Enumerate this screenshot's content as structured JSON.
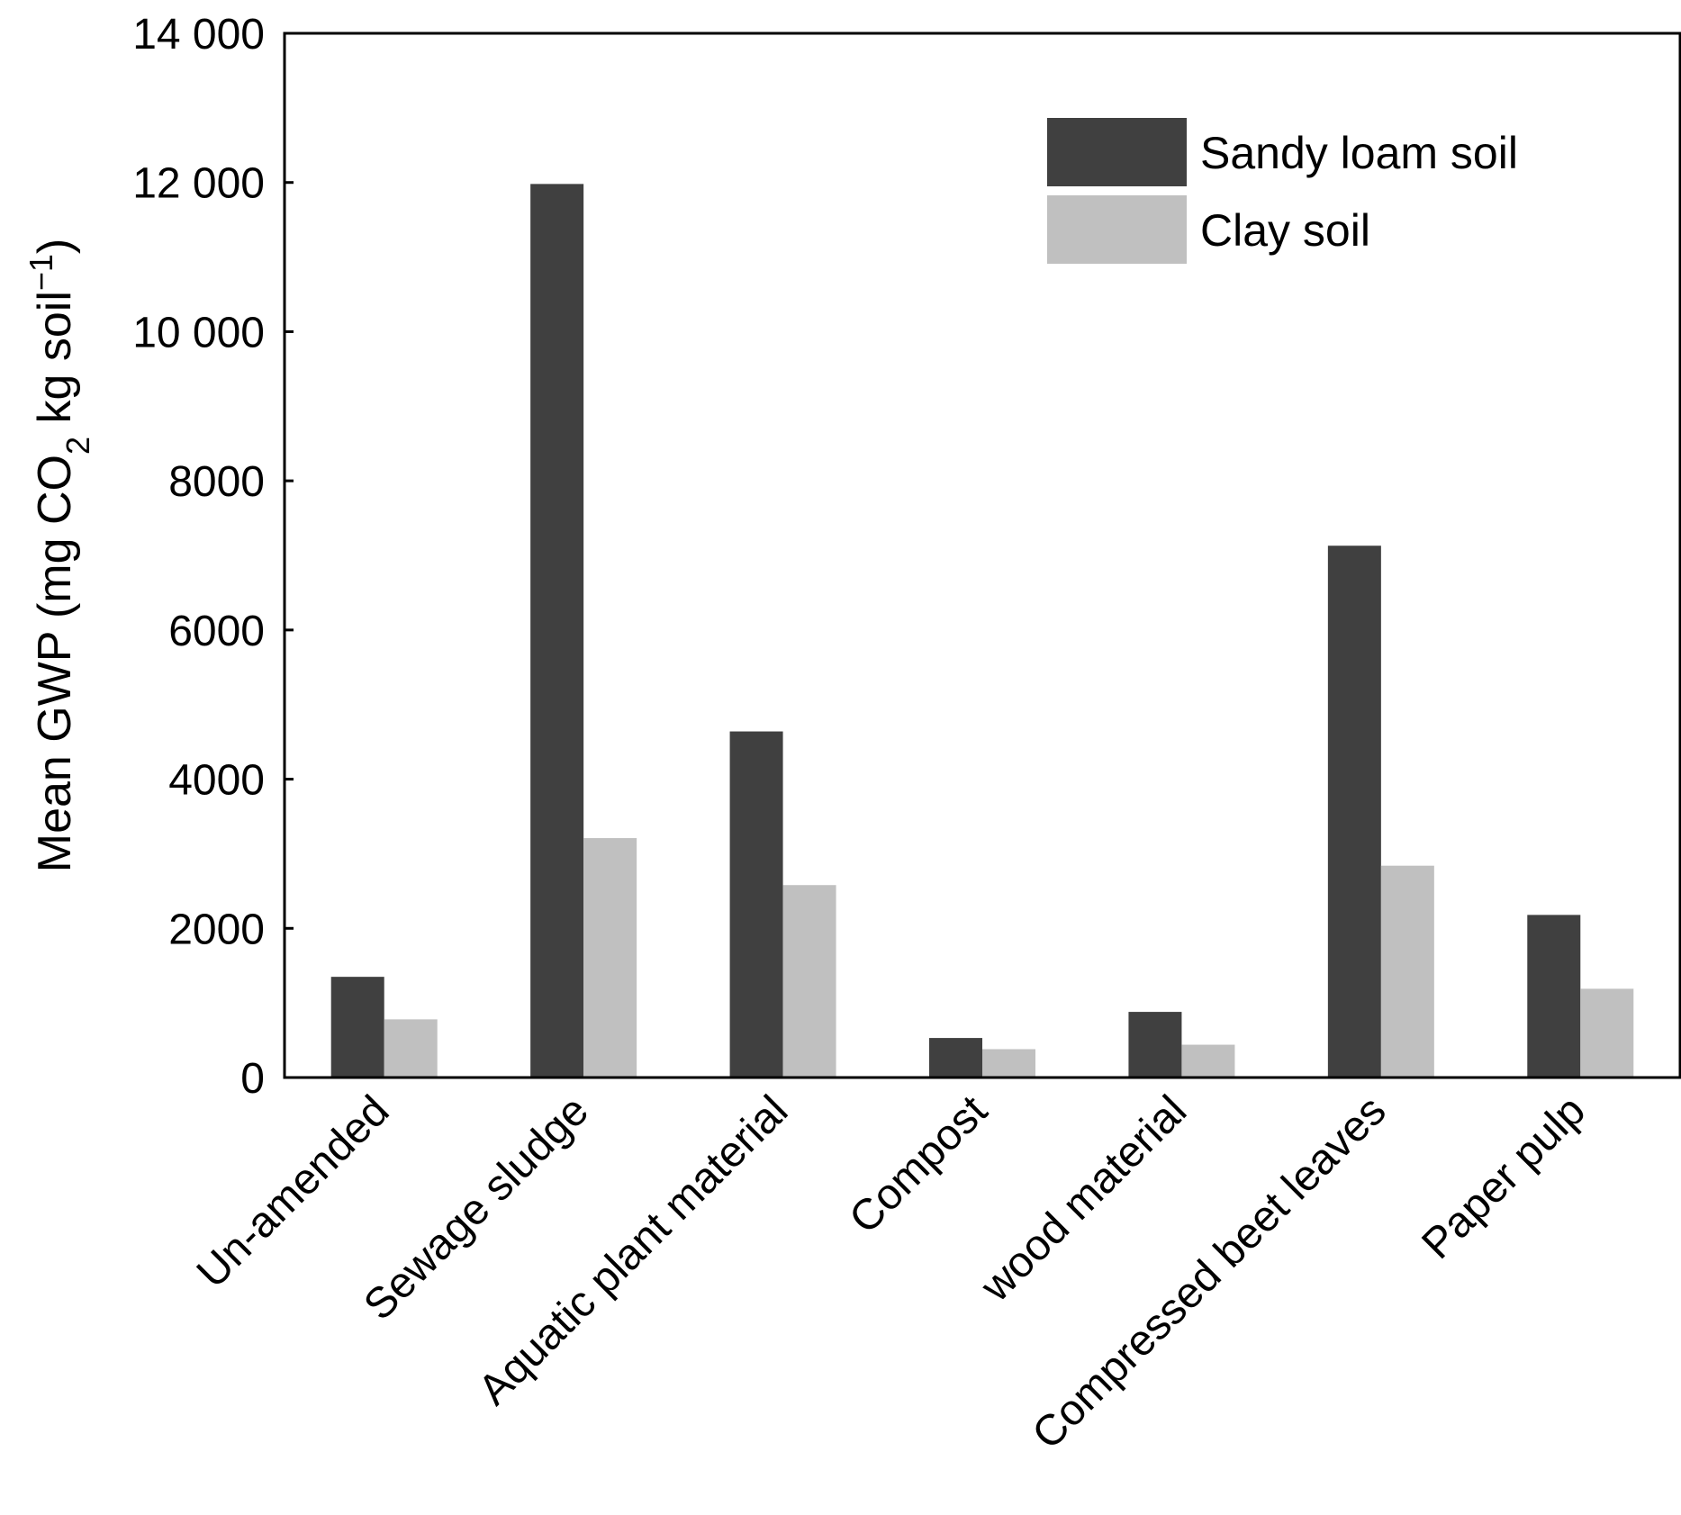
{
  "chart_data": {
    "type": "bar",
    "categories": [
      "Un-amended",
      "Sewage sludge",
      "Aquatic plant material",
      "Compost",
      "wood material",
      "Compressed beet leaves",
      "Paper pulp"
    ],
    "series": [
      {
        "name": "Sandy loam soil",
        "color": "#404040",
        "values": [
          1350,
          11980,
          4640,
          530,
          880,
          7130,
          2180
        ]
      },
      {
        "name": "Clay soil",
        "color": "#c0c0c0",
        "values": [
          780,
          3210,
          2580,
          380,
          440,
          2840,
          1190
        ]
      }
    ],
    "yticks": [
      "0",
      "2000",
      "4000",
      "6000",
      "8000",
      "10 000",
      "12 000",
      "14 000"
    ],
    "ylim": [
      0,
      14000
    ],
    "ylabel": {
      "main": "Mean GWP (mg CO",
      "sub": "2",
      "mid": " kg soil",
      "sup": "−1",
      "end": ")"
    },
    "legend_position": "top-right",
    "grid": false
  }
}
